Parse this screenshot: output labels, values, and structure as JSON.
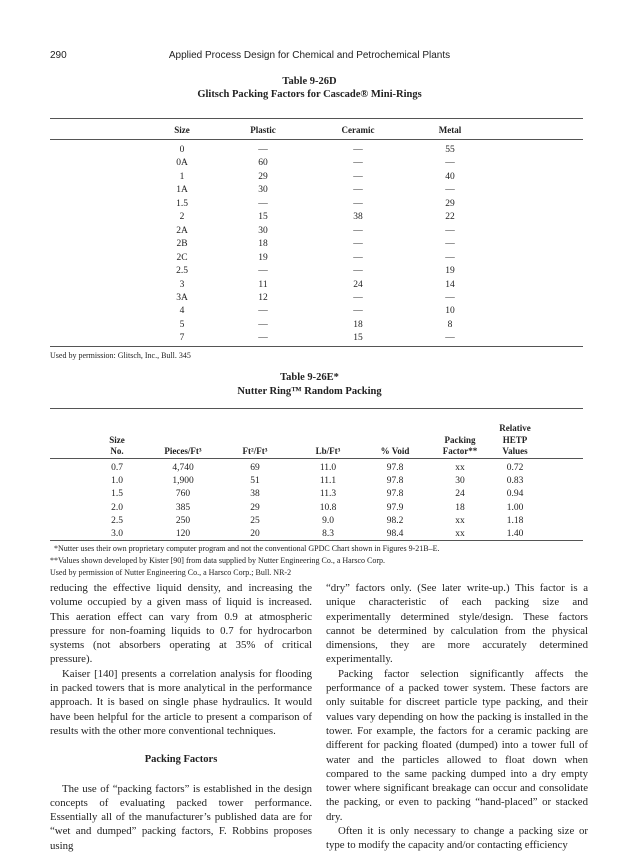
{
  "header": {
    "page_number": "290",
    "running_title": "Applied Process Design for Chemical and Petrochemical Plants"
  },
  "table_d": {
    "label": "Table 9-26D",
    "title": "Glitsch Packing Factors for Cascade® Mini-Rings",
    "columns": [
      "Size",
      "Plastic",
      "Ceramic",
      "Metal"
    ],
    "rows": [
      [
        "0",
        "—",
        "—",
        "55"
      ],
      [
        "0A",
        "60",
        "—",
        "—"
      ],
      [
        "1",
        "29",
        "—",
        "40"
      ],
      [
        "1A",
        "30",
        "—",
        "—"
      ],
      [
        "1.5",
        "—",
        "—",
        "29"
      ],
      [
        "2",
        "15",
        "38",
        "22"
      ],
      [
        "2A",
        "30",
        "—",
        "—"
      ],
      [
        "2B",
        "18",
        "—",
        "—"
      ],
      [
        "2C",
        "19",
        "—",
        "—"
      ],
      [
        "2.5",
        "—",
        "—",
        "19"
      ],
      [
        "3",
        "11",
        "24",
        "14"
      ],
      [
        "3A",
        "12",
        "—",
        "—"
      ],
      [
        "4",
        "—",
        "—",
        "10"
      ],
      [
        "5",
        "—",
        "18",
        "8"
      ],
      [
        "7",
        "—",
        "15",
        "—"
      ]
    ],
    "source": "Used by permission: Glitsch, Inc., Bull. 345"
  },
  "table_e": {
    "label": "Table 9-26E*",
    "title": "Nutter Ring™ Random Packing",
    "columns": [
      [
        "Size",
        "No."
      ],
      [
        "Pieces/Ft³"
      ],
      [
        "Ft²/Ft³"
      ],
      [
        "Lb/Ft³"
      ],
      [
        "% Void"
      ],
      [
        "Packing",
        "Factor**"
      ],
      [
        "Relative",
        "HETP",
        "Values"
      ]
    ],
    "rows": [
      [
        "0.7",
        "4,740",
        "69",
        "11.0",
        "97.8",
        "xx",
        "0.72"
      ],
      [
        "1.0",
        "1,900",
        "51",
        "11.1",
        "97.8",
        "30",
        "0.83"
      ],
      [
        "1.5",
        "760",
        "38",
        "11.3",
        "97.8",
        "24",
        "0.94"
      ],
      [
        "2.0",
        "385",
        "29",
        "10.8",
        "97.9",
        "18",
        "1.00"
      ],
      [
        "2.5",
        "250",
        "25",
        "9.0",
        "98.2",
        "xx",
        "1.18"
      ],
      [
        "3.0",
        "120",
        "20",
        "8.3",
        "98.4",
        "xx",
        "1.40"
      ]
    ],
    "notes": [
      "*Nutter uses their own proprietary computer program and not the conventional GPDC Chart shown in Figures 9-21B–E.",
      "**Values shown developed by Kister [90] from data supplied by Nutter Engineering Co., a Harsco Corp.",
      "Used by permission of Nutter Engineering Co., a Harsco Corp.; Bull. NR-2"
    ]
  },
  "body": {
    "left": {
      "p1": "reducing the effective liquid density, and increasing the volume occupied by a given mass of liquid is increased. This aeration effect can vary from 0.9 at atmospheric pressure for non-foaming liquids to 0.7 for hydrocarbon systems (not absorbers operating at 35% of critical pressure).",
      "p2": "Kaiser [140] presents a correlation analysis for flooding in packed towers that is more analytical in the performance approach. It is based on single phase hydraulics. It would have been helpful for the article to present a comparison of results with the other more conventional techniques.",
      "heading": "Packing Factors",
      "p3": "The use of “packing factors” is established in the design concepts of evaluating packed tower performance. Essentially all of the manufacturer’s published data are for “wet and dumped” packing factors, F. Robbins proposes using"
    },
    "right": {
      "p1": "“dry” factors only. (See later write-up.) This factor is a unique characteristic of each packing size and experimentally determined style/design. These factors cannot be determined by calculation from the physical dimensions, they are more accurately determined experimentally.",
      "p2": "Packing factor selection significantly affects the performance of a packed tower system. These factors are only suitable for discreet particle type packing, and their values vary depending on how the packing is installed in the tower. For example, the factors for a ceramic packing are different for packing floated (dumped) into a tower full of water and the particles allowed to float down when compared to the same packing dumped into a dry empty tower where significant breakage can occur and consolidate the packing, or even to packing “hand-placed” or stacked dry.",
      "p3": "Often it is only necessary to change a packing size or type to modify the capacity and/or contacting efficiency"
    }
  }
}
